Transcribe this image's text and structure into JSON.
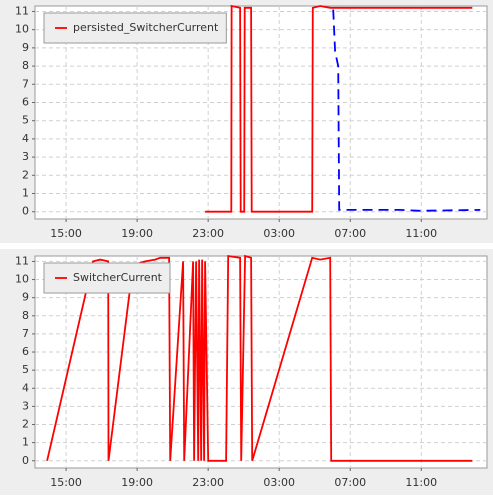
{
  "chart_data": [
    {
      "type": "line",
      "legend": "upper left",
      "grid": true,
      "xlim": [
        13.25,
        38.7
      ],
      "ylim": [
        -0.4,
        11.3
      ],
      "xticks": [
        {
          "value": 15,
          "label": "15:00"
        },
        {
          "value": 19,
          "label": "19:00"
        },
        {
          "value": 23,
          "label": "23:00"
        },
        {
          "value": 27,
          "label": "03:00"
        },
        {
          "value": 31,
          "label": "07:00"
        },
        {
          "value": 35,
          "label": "11:00"
        }
      ],
      "yticks": [
        0,
        1,
        2,
        3,
        4,
        5,
        6,
        7,
        8,
        9,
        10,
        11
      ],
      "series": [
        {
          "name": "persisted_SwitcherCurrent",
          "color": "#ff0000",
          "x": [
            22.83,
            24.3,
            24.32,
            24.8,
            24.83,
            25.03,
            25.06,
            25.42,
            25.45,
            28.86,
            28.89,
            29.31,
            29.87,
            37.87
          ],
          "values": [
            0,
            0,
            11.3,
            11.2,
            0,
            0,
            11.2,
            11.2,
            0,
            0,
            11.2,
            11.3,
            11.2,
            11.2
          ]
        },
        {
          "color": "#0000ff",
          "dashed": true,
          "x": [
            30.04,
            30.15,
            30.32,
            30.38,
            33.82,
            34.94,
            38.32
          ],
          "values": [
            11.1,
            8.8,
            8.0,
            0.1,
            0.1,
            0.05,
            0.1
          ]
        }
      ]
    },
    {
      "type": "line",
      "legend": "upper left",
      "grid": true,
      "xlim": [
        13.25,
        38.7
      ],
      "ylim": [
        -0.4,
        11.3
      ],
      "xticks": [
        {
          "value": 15,
          "label": "15:00"
        },
        {
          "value": 19,
          "label": "19:00"
        },
        {
          "value": 23,
          "label": "23:00"
        },
        {
          "value": 27,
          "label": "03:00"
        },
        {
          "value": 31,
          "label": "07:00"
        },
        {
          "value": 35,
          "label": "11:00"
        }
      ],
      "yticks": [
        0,
        1,
        2,
        3,
        4,
        5,
        6,
        7,
        8,
        9,
        10,
        11
      ],
      "series": [
        {
          "name": "SwitcherCurrent",
          "color": "#ff0000",
          "x": [
            13.93,
            16.52,
            16.92,
            17.37,
            17.39,
            18.77,
            19.45,
            20.01,
            20.3,
            20.8,
            20.86,
            21.59,
            21.65,
            22.15,
            22.21,
            22.32,
            22.44,
            22.49,
            22.61,
            22.66,
            22.77,
            22.83,
            23.0,
            24.01,
            24.13,
            24.8,
            24.86,
            25.08,
            25.42,
            25.48,
            28.86,
            29.31,
            29.87,
            29.93,
            37.87
          ],
          "values": [
            0,
            11.0,
            11.1,
            11.0,
            0,
            10.8,
            11.0,
            11.1,
            11.2,
            11.2,
            0,
            11.0,
            0,
            11.0,
            0,
            11.0,
            0,
            11.1,
            0,
            11.1,
            0,
            11.0,
            0,
            0,
            11.3,
            11.2,
            0,
            11.3,
            11.2,
            0,
            11.2,
            11.1,
            11.2,
            0,
            0
          ]
        }
      ]
    }
  ]
}
